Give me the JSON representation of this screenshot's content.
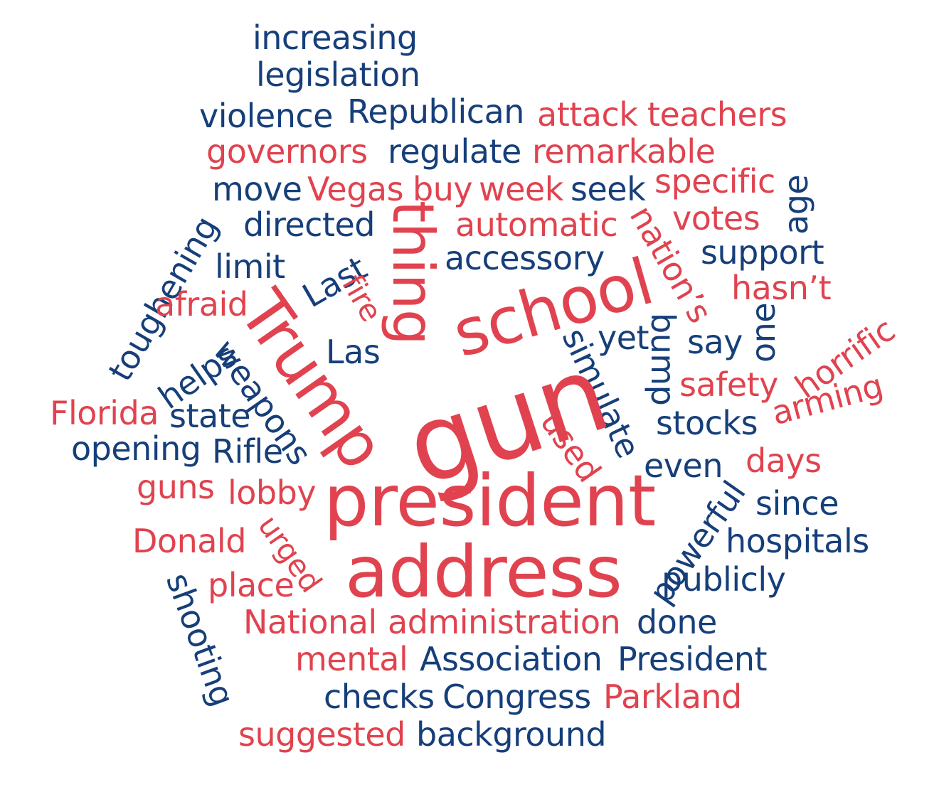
{
  "colors": {
    "blue": "#163f7a",
    "red": "#e0434f",
    "background": "#ffffff"
  },
  "words": [
    {
      "text": "increasing",
      "color": "blue"
    },
    {
      "text": "legislation",
      "color": "blue"
    },
    {
      "text": "violence",
      "color": "blue"
    },
    {
      "text": "Republican",
      "color": "blue"
    },
    {
      "text": "attack",
      "color": "red"
    },
    {
      "text": "teachers",
      "color": "red"
    },
    {
      "text": "governors",
      "color": "red"
    },
    {
      "text": "regulate",
      "color": "blue"
    },
    {
      "text": "remarkable",
      "color": "red"
    },
    {
      "text": "move",
      "color": "blue"
    },
    {
      "text": "Vegas",
      "color": "red"
    },
    {
      "text": "buy",
      "color": "red"
    },
    {
      "text": "week",
      "color": "red"
    },
    {
      "text": "seek",
      "color": "blue"
    },
    {
      "text": "specific",
      "color": "red"
    },
    {
      "text": "age",
      "color": "blue"
    },
    {
      "text": "toughening",
      "color": "blue"
    },
    {
      "text": "directed",
      "color": "blue"
    },
    {
      "text": "thing",
      "color": "red"
    },
    {
      "text": "automatic",
      "color": "red"
    },
    {
      "text": "nation’s",
      "color": "red"
    },
    {
      "text": "votes",
      "color": "red"
    },
    {
      "text": "support",
      "color": "blue"
    },
    {
      "text": "limit",
      "color": "blue"
    },
    {
      "text": "Last",
      "color": "blue"
    },
    {
      "text": "accessory",
      "color": "blue"
    },
    {
      "text": "hasn’t",
      "color": "red"
    },
    {
      "text": "afraid",
      "color": "red"
    },
    {
      "text": "fire",
      "color": "red"
    },
    {
      "text": "school",
      "color": "red"
    },
    {
      "text": "horrific",
      "color": "red"
    },
    {
      "text": "one",
      "color": "blue"
    },
    {
      "text": "Trump",
      "color": "red"
    },
    {
      "text": "helps",
      "color": "blue"
    },
    {
      "text": "weapons",
      "color": "blue"
    },
    {
      "text": "Las",
      "color": "blue"
    },
    {
      "text": "simulate",
      "color": "blue"
    },
    {
      "text": "yet",
      "color": "blue"
    },
    {
      "text": "bump",
      "color": "blue"
    },
    {
      "text": "say",
      "color": "blue"
    },
    {
      "text": "gun",
      "color": "red"
    },
    {
      "text": "safety",
      "color": "red"
    },
    {
      "text": "arming",
      "color": "red"
    },
    {
      "text": "Florida",
      "color": "red"
    },
    {
      "text": "state",
      "color": "blue"
    },
    {
      "text": "stocks",
      "color": "blue"
    },
    {
      "text": "used",
      "color": "red"
    },
    {
      "text": "opening",
      "color": "blue"
    },
    {
      "text": "Rifle",
      "color": "blue"
    },
    {
      "text": "days",
      "color": "red"
    },
    {
      "text": "even",
      "color": "blue"
    },
    {
      "text": "guns",
      "color": "red"
    },
    {
      "text": "lobby",
      "color": "red"
    },
    {
      "text": "president",
      "color": "red"
    },
    {
      "text": "powerful",
      "color": "blue"
    },
    {
      "text": "since",
      "color": "blue"
    },
    {
      "text": "Donald",
      "color": "red"
    },
    {
      "text": "urged",
      "color": "red"
    },
    {
      "text": "hospitals",
      "color": "blue"
    },
    {
      "text": "address",
      "color": "red"
    },
    {
      "text": "shooting",
      "color": "blue"
    },
    {
      "text": "place",
      "color": "red"
    },
    {
      "text": "publicly",
      "color": "blue"
    },
    {
      "text": "National",
      "color": "red"
    },
    {
      "text": "administration",
      "color": "red"
    },
    {
      "text": "done",
      "color": "blue"
    },
    {
      "text": "mental",
      "color": "red"
    },
    {
      "text": "Association",
      "color": "blue"
    },
    {
      "text": "President",
      "color": "blue"
    },
    {
      "text": "checks",
      "color": "blue"
    },
    {
      "text": "Congress",
      "color": "blue"
    },
    {
      "text": "Parkland",
      "color": "red"
    },
    {
      "text": "suggested",
      "color": "red"
    },
    {
      "text": "background",
      "color": "blue"
    }
  ]
}
